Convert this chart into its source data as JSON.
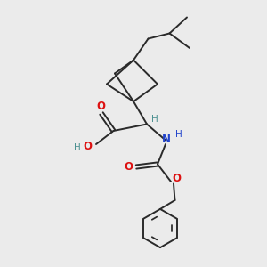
{
  "bg_color": "#ebebeb",
  "line_color": "#2a2a2a",
  "red_color": "#dd1111",
  "blue_color": "#2244cc",
  "teal_color": "#4a9090",
  "figsize": [
    3.0,
    3.0
  ],
  "dpi": 100,
  "xlim": [
    0,
    10
  ],
  "ylim": [
    0,
    10
  ]
}
